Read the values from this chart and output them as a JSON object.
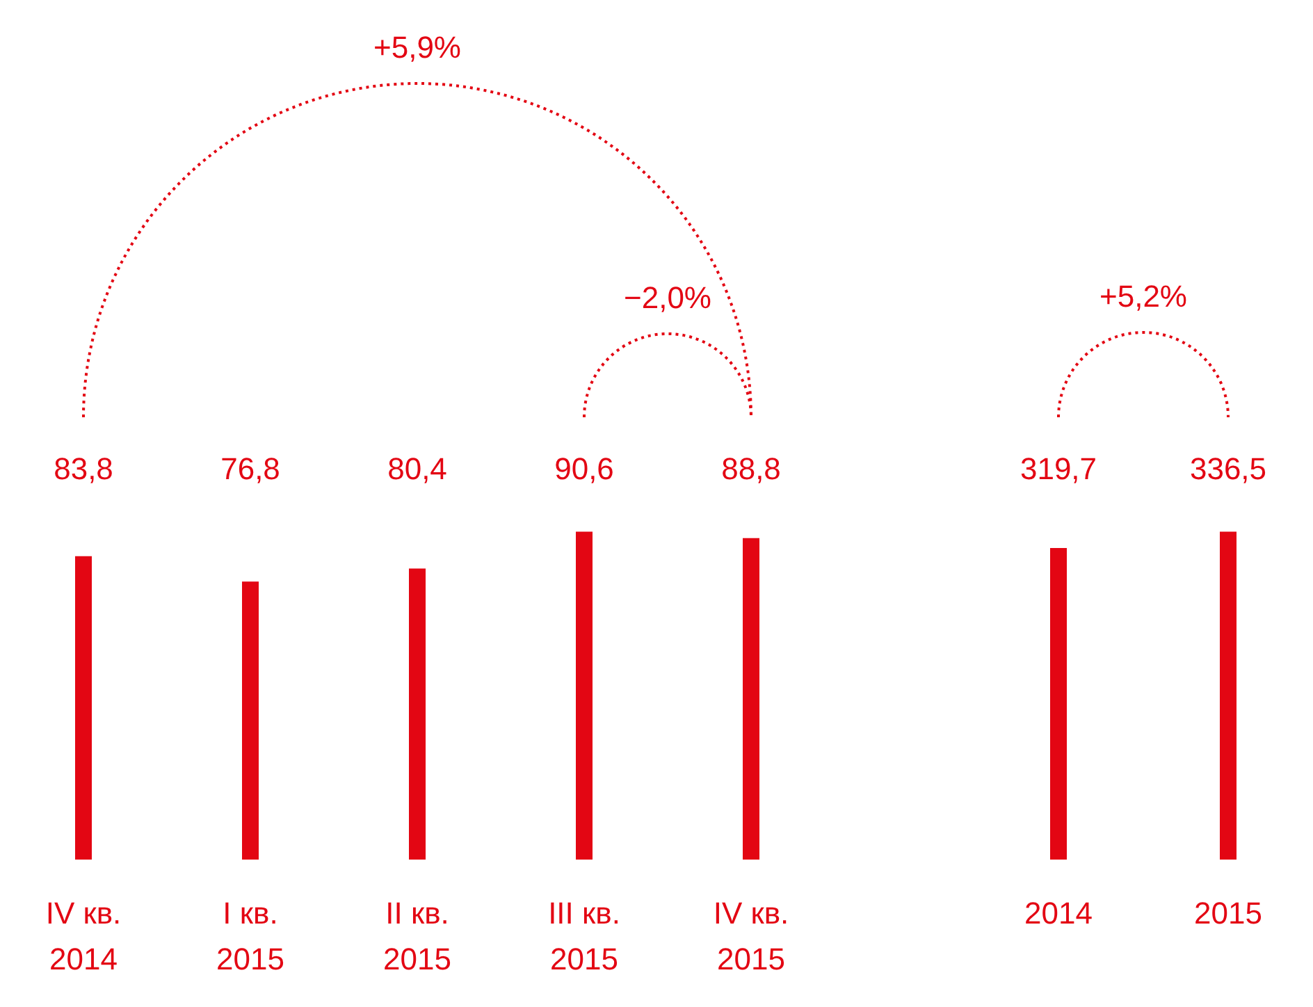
{
  "chart_data": [
    {
      "type": "bar",
      "categories": [
        "IV кв.\n2014",
        "I кв.\n2015",
        "II кв.\n2015",
        "III кв.\n2015",
        "IV кв.\n2015"
      ],
      "values": [
        83.8,
        76.8,
        80.4,
        90.6,
        88.8
      ],
      "value_labels": [
        "83,8",
        "76,8",
        "80,4",
        "90,6",
        "88,8"
      ],
      "color": "#e30613",
      "tick_labels": "x",
      "annotations": [
        "+5,9%",
        "−2,0%"
      ]
    },
    {
      "type": "bar",
      "categories": [
        "2014",
        "2015"
      ],
      "values": [
        319.7,
        336.5
      ],
      "value_labels": [
        "319,7",
        "336,5"
      ],
      "color": "#e30613",
      "tick_labels": "x",
      "annotations": [
        "+5,2%"
      ]
    }
  ]
}
